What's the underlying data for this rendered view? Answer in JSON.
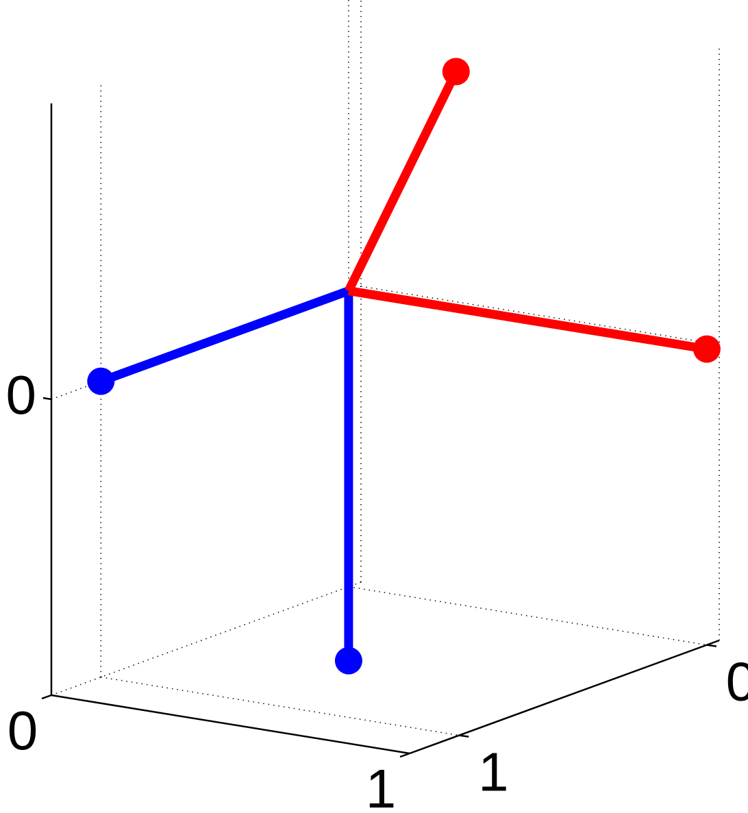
{
  "chart_data": {
    "type": "line3d",
    "marker": "end",
    "grid": true,
    "xlim": [
      0,
      1
    ],
    "ylim": [
      -0.05,
      1.2
    ],
    "zlim": [
      -1,
      1
    ],
    "xticks": [
      0,
      1
    ],
    "yticks": [
      0,
      1
    ],
    "zticks": [
      0
    ],
    "series": [
      {
        "color": "#0000ff",
        "x": [
          0,
          0
        ],
        "y": [
          0,
          1
        ],
        "z": [
          0,
          0
        ]
      },
      {
        "color": "#0000ff",
        "x": [
          0,
          0
        ],
        "y": [
          0,
          0
        ],
        "z": [
          0,
          -1.25
        ]
      },
      {
        "color": "#ff0000",
        "x": [
          0,
          1
        ],
        "y": [
          0,
          0
        ],
        "z": [
          0,
          0
        ]
      },
      {
        "color": "#ff0000",
        "x": [
          0,
          0.3
        ],
        "y": [
          0,
          0
        ],
        "z": [
          0,
          0.8
        ]
      }
    ]
  }
}
